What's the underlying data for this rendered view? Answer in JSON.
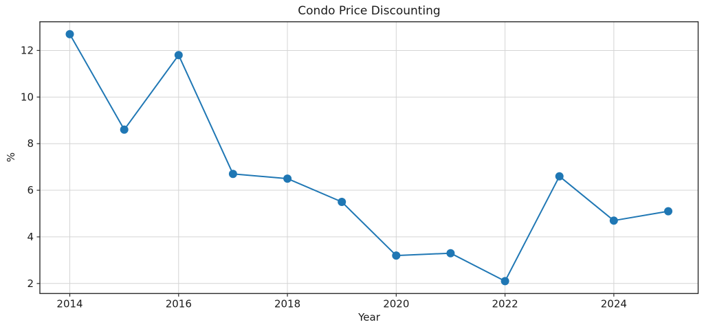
{
  "chart_data": {
    "type": "line",
    "title": "Condo Price Discounting",
    "xlabel": "Year",
    "ylabel": "%",
    "x": [
      2014,
      2015,
      2016,
      2017,
      2018,
      2019,
      2020,
      2021,
      2022,
      2023,
      2024,
      2025
    ],
    "y": [
      12.7,
      8.6,
      11.8,
      6.7,
      6.5,
      5.5,
      3.2,
      3.3,
      2.1,
      6.6,
      4.7,
      5.1
    ],
    "xticks": [
      2014,
      2016,
      2018,
      2020,
      2022,
      2024
    ],
    "yticks": [
      2,
      4,
      6,
      8,
      10,
      12
    ],
    "xlim": [
      2013.45,
      2025.55
    ],
    "ylim": [
      1.57,
      13.23
    ],
    "grid": true,
    "legend": "none",
    "line_color": "#1f77b4",
    "marker": "o",
    "marker_radius": 6,
    "line_width": 2,
    "grid_color": "#d4d4d4",
    "spine_color": "#2b2b2b",
    "background_color": "#ffffff"
  }
}
